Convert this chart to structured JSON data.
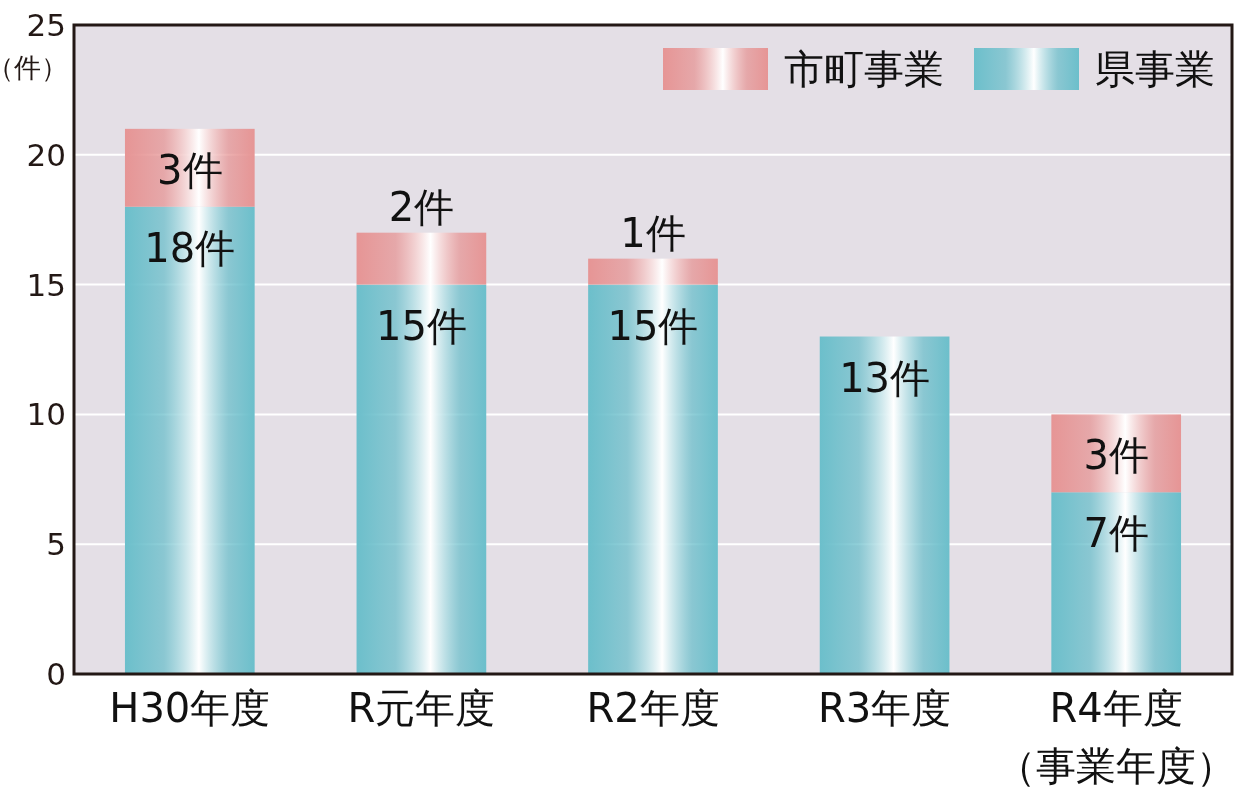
{
  "chart_data": {
    "type": "bar",
    "stacked": true,
    "ylabel": "（件）",
    "categories": [
      "H30年度",
      "R元年度",
      "R2年度",
      "R3年度",
      "R4年度（事業年度）"
    ],
    "series": [
      {
        "name": "県事業",
        "color": "#6cbfcb",
        "values": [
          18,
          15,
          15,
          13,
          7
        ],
        "value_labels": [
          "18件",
          "15件",
          "15件",
          "13件",
          "7件"
        ]
      },
      {
        "name": "市町事業",
        "color": "#e69595",
        "values": [
          3,
          2,
          1,
          null,
          3
        ],
        "value_labels": [
          "3件",
          "2件",
          "1件",
          null,
          "3件"
        ]
      }
    ],
    "ylim": [
      0,
      25
    ],
    "yticks": [
      0,
      5,
      10,
      15,
      20,
      25
    ],
    "grid": "y",
    "legend": "top right"
  }
}
